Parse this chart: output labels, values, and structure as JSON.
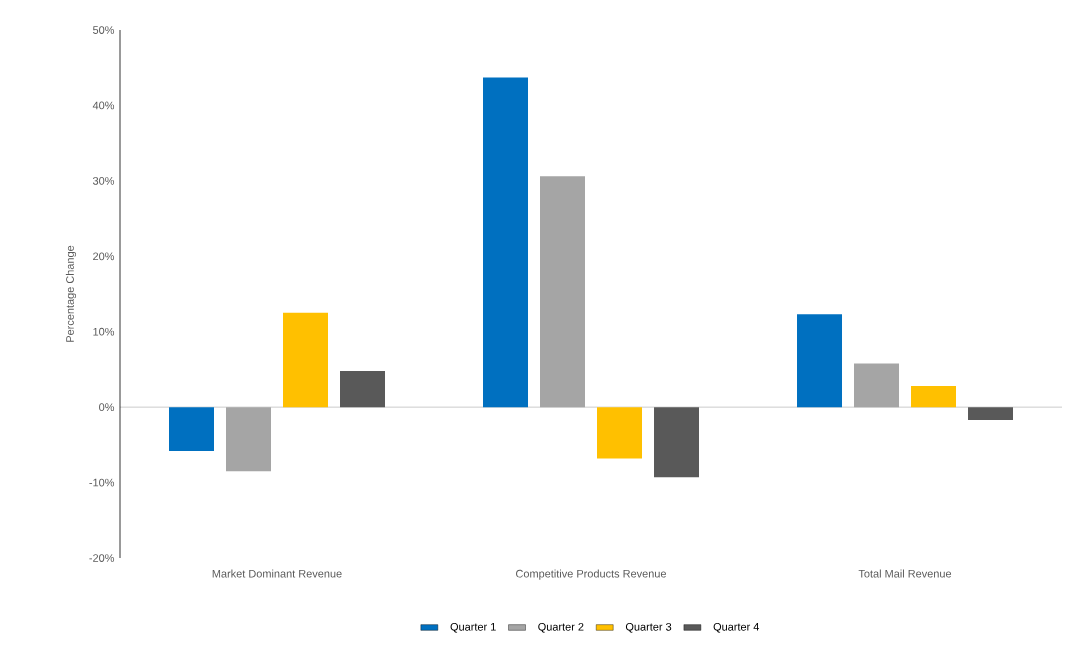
{
  "chart_data": {
    "type": "bar",
    "ylabel": "Percentage Change",
    "categories": [
      "Market Dominant Revenue",
      "Competitive Products Revenue",
      "Total Mail Revenue"
    ],
    "series": [
      {
        "name": "Quarter 1",
        "color": "#0070c0",
        "values": [
          -5.8,
          43.7,
          12.3
        ]
      },
      {
        "name": "Quarter 2",
        "color": "#a5a5a5",
        "values": [
          -8.5,
          30.6,
          5.8
        ]
      },
      {
        "name": "Quarter 3",
        "color": "#ffc000",
        "values": [
          12.5,
          -6.8,
          2.8
        ]
      },
      {
        "name": "Quarter 4",
        "color": "#595959",
        "values": [
          4.8,
          -9.3,
          -1.7
        ]
      }
    ],
    "ylim": [
      -20,
      50
    ],
    "yticks": [
      {
        "value": -20,
        "label": "-20%"
      },
      {
        "value": -10,
        "label": "-10%"
      },
      {
        "value": 0,
        "label": "0%"
      },
      {
        "value": 10,
        "label": "10%"
      },
      {
        "value": 20,
        "label": "20%"
      },
      {
        "value": 30,
        "label": "30%"
      },
      {
        "value": 40,
        "label": "40%"
      },
      {
        "value": 50,
        "label": "50%"
      }
    ],
    "legend": "bottom"
  }
}
